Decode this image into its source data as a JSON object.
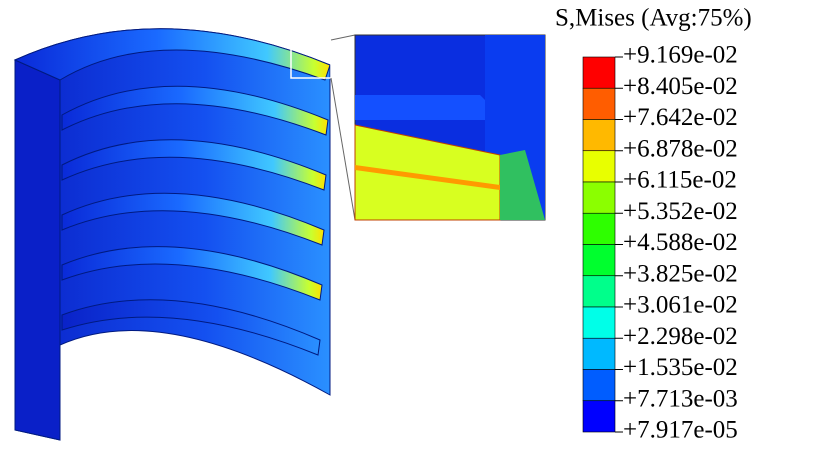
{
  "legend": {
    "title": "S,Mises (Avg:75%)",
    "labels": [
      "+9.169e-02",
      "+8.405e-02",
      "+7.642e-02",
      "+6.878e-02",
      "+6.115e-02",
      "+5.352e-02",
      "+4.588e-02",
      "+3.825e-02",
      "+3.061e-02",
      "+2.298e-02",
      "+1.535e-02",
      "+7.713e-03",
      "+7.917e-05"
    ],
    "colors": [
      "#ff0000",
      "#ff5d00",
      "#ffb900",
      "#e8ff00",
      "#8bff00",
      "#2eff00",
      "#00ff2e",
      "#00ff8b",
      "#00ffe8",
      "#00b9ff",
      "#005dff",
      "#0000ff"
    ]
  }
}
